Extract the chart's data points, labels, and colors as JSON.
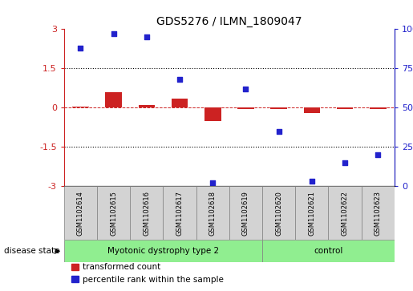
{
  "title": "GDS5276 / ILMN_1809047",
  "samples": [
    "GSM1102614",
    "GSM1102615",
    "GSM1102616",
    "GSM1102617",
    "GSM1102618",
    "GSM1102619",
    "GSM1102620",
    "GSM1102621",
    "GSM1102622",
    "GSM1102623"
  ],
  "red_values": [
    0.05,
    0.6,
    0.1,
    0.35,
    -0.5,
    -0.05,
    -0.04,
    -0.2,
    -0.04,
    -0.04
  ],
  "blue_values_raw": [
    88,
    97,
    95,
    68,
    2,
    62,
    35,
    3,
    15,
    20
  ],
  "group1_label": "Myotonic dystrophy type 2",
  "group2_label": "control",
  "group1_samples": 6,
  "group2_samples": 4,
  "disease_state_label": "disease state",
  "legend_red": "transformed count",
  "legend_blue": "percentile rank within the sample",
  "ylim_left": [
    -3,
    3
  ],
  "yticks_left": [
    -3,
    -1.5,
    0,
    1.5,
    3
  ],
  "yticks_right": [
    0,
    25,
    50,
    75,
    100
  ],
  "hline_dotted_vals": [
    1.5,
    -1.5
  ],
  "red_color": "#cc2222",
  "blue_color": "#2222cc",
  "dashed_line_color": "#cc2222",
  "group_bg_color": "#90ee90",
  "sample_bg_color": "#d3d3d3",
  "bar_width": 0.5
}
